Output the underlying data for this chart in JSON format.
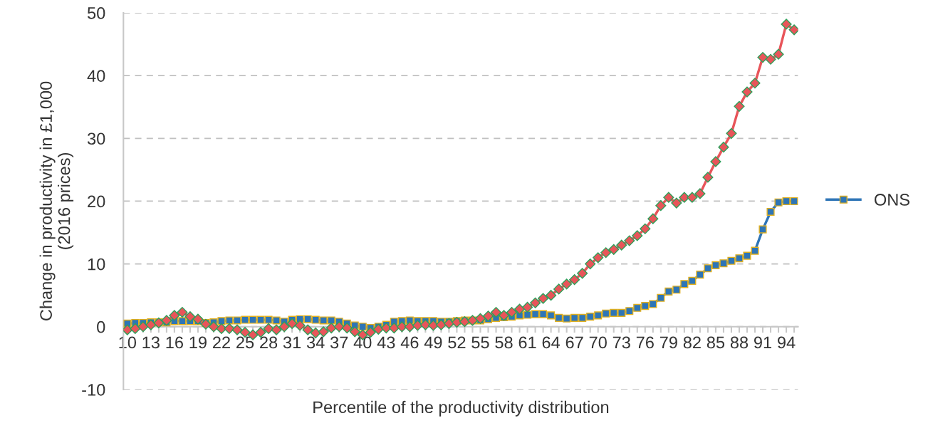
{
  "chart_data": {
    "type": "line",
    "xlabel": "Percentile of the productivity distribution",
    "ylabel": "Change in productivity in £1,000\n(2016 prices)",
    "categories": [
      "10",
      null,
      null,
      "13",
      null,
      null,
      "16",
      null,
      null,
      "19",
      null,
      null,
      "22",
      null,
      null,
      "25",
      null,
      null,
      "28",
      null,
      null,
      "31",
      null,
      null,
      "34",
      null,
      null,
      "37",
      null,
      null,
      "40",
      null,
      null,
      "43",
      null,
      null,
      "46",
      null,
      null,
      "49",
      null,
      null,
      "52",
      null,
      null,
      "55",
      null,
      null,
      "58",
      null,
      null,
      "61",
      null,
      null,
      "64",
      null,
      null,
      "67",
      null,
      null,
      "70",
      null,
      null,
      "73",
      null,
      null,
      "76",
      null,
      null,
      "79",
      null,
      null,
      "82",
      null,
      null,
      "85",
      null,
      null,
      "88",
      null,
      null,
      "91",
      null,
      null,
      "94",
      null
    ],
    "series": [
      {
        "name": "ONS",
        "color": "#2e75b6",
        "marker": "square",
        "values": [
          0.5,
          0.6,
          0.6,
          0.7,
          0.7,
          0.7,
          0.9,
          0.9,
          0.9,
          0.9,
          0.6,
          0.7,
          0.9,
          1.0,
          1.0,
          1.1,
          1.1,
          1.1,
          1.1,
          1.0,
          0.8,
          1.1,
          1.2,
          1.2,
          1.1,
          1.0,
          1.0,
          0.8,
          0.5,
          0.2,
          0.0,
          -0.2,
          0.0,
          0.3,
          0.8,
          0.9,
          1.0,
          0.9,
          0.9,
          0.9,
          0.8,
          0.8,
          0.9,
          1.0,
          1.0,
          1.0,
          1.2,
          1.4,
          1.5,
          1.6,
          1.8,
          1.9,
          2.0,
          2.0,
          1.8,
          1.4,
          1.3,
          1.4,
          1.4,
          1.6,
          1.8,
          2.1,
          2.2,
          2.2,
          2.5,
          3.0,
          3.3,
          3.6,
          4.6,
          5.6,
          5.9,
          6.8,
          7.3,
          8.3,
          9.3,
          9.8,
          10.1,
          10.5,
          10.9,
          11.3,
          12.1,
          15.5,
          18.3,
          19.8,
          20.0,
          20.0
        ]
      },
      {
        "color": "#e8555a",
        "marker": "diamond",
        "values": [
          -0.5,
          -0.3,
          0.0,
          0.3,
          0.6,
          1.0,
          1.8,
          2.3,
          1.6,
          1.2,
          0.4,
          0.0,
          -0.3,
          -0.3,
          -0.5,
          -0.9,
          -1.3,
          -0.9,
          -0.3,
          -0.5,
          0.0,
          0.5,
          0.2,
          -0.5,
          -1.0,
          -0.8,
          -0.2,
          0.0,
          -0.2,
          -0.8,
          -1.3,
          -0.9,
          -0.4,
          -0.2,
          -0.2,
          0.0,
          0.0,
          0.2,
          0.3,
          0.2,
          0.3,
          0.5,
          0.7,
          0.8,
          1.0,
          1.3,
          1.7,
          2.3,
          1.8,
          2.3,
          2.8,
          3.1,
          3.8,
          4.5,
          5.0,
          6.0,
          6.8,
          7.5,
          8.5,
          10.0,
          11.0,
          11.8,
          12.3,
          13.0,
          13.7,
          14.5,
          15.6,
          17.2,
          19.3,
          20.6,
          19.7,
          20.6,
          20.6,
          21.2,
          23.8,
          26.3,
          28.6,
          30.8,
          35.1,
          37.4,
          38.8,
          42.9,
          42.6,
          43.4,
          48.2,
          47.3
        ]
      }
    ],
    "ylim": [
      -10,
      50
    ],
    "yticks": [
      -10,
      0,
      10,
      20,
      30,
      40,
      50
    ],
    "grid": "y",
    "legend": "right",
    "line_style": "solid"
  }
}
